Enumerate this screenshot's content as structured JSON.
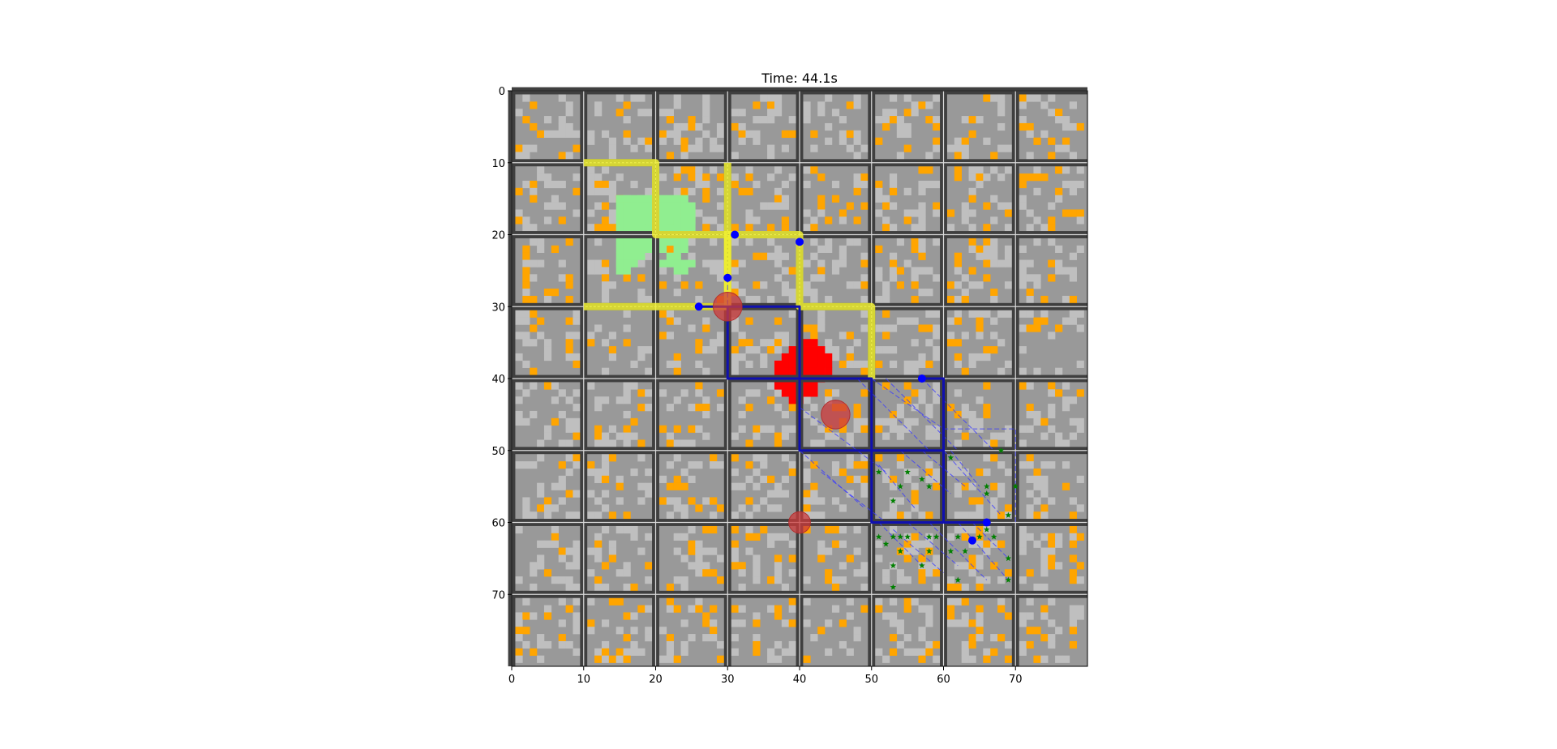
{
  "chart_data": {
    "type": "heatmap",
    "title": "Time: 44.1s",
    "xlabel": "",
    "ylabel": "",
    "xlim": [
      0,
      80
    ],
    "ylim": [
      80,
      0
    ],
    "y_inverted": true,
    "grid": true,
    "x_ticks": [
      0,
      10,
      20,
      30,
      40,
      50,
      60,
      70
    ],
    "y_ticks": [
      0,
      10,
      20,
      30,
      40,
      50,
      60,
      70
    ],
    "x_tick_labels": [
      "0",
      "10",
      "20",
      "30",
      "40",
      "50",
      "60",
      "70"
    ],
    "y_tick_labels": [
      "0",
      "10",
      "20",
      "30",
      "40",
      "50",
      "60",
      "70"
    ],
    "block_size": 10,
    "colors": {
      "background_cell": "#999999",
      "light_cell": "#bfbfbf",
      "obstacle_cell": "#ffa500",
      "wall": "#3f3f3f",
      "grid_line": "#d9d9d9",
      "green_region": "#90ee90",
      "red_region": "#ff0000",
      "yellow_path": "#f0f032",
      "blue_route": "#1010b0",
      "dashed_route": "#3a3aff",
      "waypoint": "#0000ff",
      "star": "#008000",
      "hazard_circle": "#cd3b3b"
    },
    "green_region_cells": [
      [
        15,
        15
      ],
      [
        16,
        15
      ],
      [
        17,
        15
      ],
      [
        18,
        15
      ],
      [
        19,
        15
      ],
      [
        21,
        15
      ],
      [
        22,
        15
      ],
      [
        23,
        15
      ],
      [
        24,
        15
      ],
      [
        15,
        16
      ],
      [
        16,
        16
      ],
      [
        17,
        16
      ],
      [
        18,
        16
      ],
      [
        19,
        16
      ],
      [
        21,
        16
      ],
      [
        22,
        16
      ],
      [
        23,
        16
      ],
      [
        24,
        16
      ],
      [
        25,
        16
      ],
      [
        15,
        17
      ],
      [
        16,
        17
      ],
      [
        17,
        17
      ],
      [
        18,
        17
      ],
      [
        19,
        17
      ],
      [
        21,
        17
      ],
      [
        22,
        17
      ],
      [
        23,
        17
      ],
      [
        24,
        17
      ],
      [
        25,
        17
      ],
      [
        15,
        18
      ],
      [
        16,
        18
      ],
      [
        17,
        18
      ],
      [
        18,
        18
      ],
      [
        19,
        18
      ],
      [
        21,
        18
      ],
      [
        22,
        18
      ],
      [
        23,
        18
      ],
      [
        24,
        18
      ],
      [
        25,
        18
      ],
      [
        15,
        19
      ],
      [
        16,
        19
      ],
      [
        17,
        19
      ],
      [
        18,
        19
      ],
      [
        19,
        19
      ],
      [
        21,
        19
      ],
      [
        22,
        19
      ],
      [
        23,
        19
      ],
      [
        24,
        19
      ],
      [
        25,
        19
      ],
      [
        15,
        21
      ],
      [
        16,
        21
      ],
      [
        17,
        21
      ],
      [
        18,
        21
      ],
      [
        19,
        21
      ],
      [
        21,
        21
      ],
      [
        22,
        21
      ],
      [
        23,
        21
      ],
      [
        24,
        21
      ],
      [
        15,
        22
      ],
      [
        16,
        22
      ],
      [
        17,
        22
      ],
      [
        18,
        22
      ],
      [
        19,
        22
      ],
      [
        21,
        22
      ],
      [
        23,
        22
      ],
      [
        24,
        22
      ],
      [
        15,
        23
      ],
      [
        16,
        23
      ],
      [
        17,
        23
      ],
      [
        18,
        23
      ],
      [
        22,
        23
      ],
      [
        23,
        23
      ],
      [
        15,
        24
      ],
      [
        16,
        24
      ],
      [
        17,
        24
      ],
      [
        21,
        24
      ],
      [
        22,
        24
      ],
      [
        23,
        24
      ],
      [
        24,
        24
      ],
      [
        25,
        24
      ],
      [
        15,
        25
      ],
      [
        16,
        25
      ],
      [
        23,
        25
      ],
      [
        24,
        25
      ]
    ],
    "red_region_cells": [
      [
        40,
        35
      ],
      [
        41,
        35
      ],
      [
        42,
        35
      ],
      [
        39,
        36
      ],
      [
        40,
        36
      ],
      [
        41,
        36
      ],
      [
        42,
        36
      ],
      [
        43,
        36
      ],
      [
        38,
        37
      ],
      [
        39,
        37
      ],
      [
        40,
        37
      ],
      [
        41,
        37
      ],
      [
        42,
        37
      ],
      [
        43,
        37
      ],
      [
        44,
        37
      ],
      [
        37,
        38
      ],
      [
        38,
        38
      ],
      [
        39,
        38
      ],
      [
        40,
        38
      ],
      [
        41,
        38
      ],
      [
        42,
        38
      ],
      [
        43,
        38
      ],
      [
        44,
        38
      ],
      [
        37,
        39
      ],
      [
        38,
        39
      ],
      [
        39,
        39
      ],
      [
        40,
        39
      ],
      [
        41,
        39
      ],
      [
        42,
        39
      ],
      [
        43,
        39
      ],
      [
        44,
        39
      ],
      [
        37,
        40
      ],
      [
        38,
        40
      ],
      [
        39,
        40
      ],
      [
        41,
        40
      ],
      [
        42,
        40
      ],
      [
        43,
        40
      ],
      [
        37,
        41
      ],
      [
        38,
        41
      ],
      [
        39,
        41
      ],
      [
        41,
        41
      ],
      [
        42,
        41
      ],
      [
        38,
        42
      ],
      [
        39,
        42
      ],
      [
        41,
        42
      ],
      [
        42,
        42
      ],
      [
        39,
        43
      ],
      [
        40,
        43
      ]
    ],
    "yellow_paths": [
      [
        [
          10,
          10
        ],
        [
          20,
          10
        ],
        [
          20,
          20
        ],
        [
          30,
          20
        ],
        [
          30,
          30
        ]
      ],
      [
        [
          30,
          10
        ],
        [
          30,
          30
        ]
      ],
      [
        [
          30,
          20
        ],
        [
          40,
          20
        ],
        [
          40,
          30
        ],
        [
          50,
          30
        ],
        [
          50,
          40
        ]
      ],
      [
        [
          10,
          30
        ],
        [
          30,
          30
        ]
      ]
    ],
    "blue_routes": [
      [
        [
          26,
          30
        ],
        [
          40,
          30
        ],
        [
          40,
          40
        ],
        [
          50,
          40
        ],
        [
          50,
          50
        ],
        [
          60,
          50
        ],
        [
          60,
          60
        ],
        [
          66,
          60
        ]
      ],
      [
        [
          40,
          40
        ],
        [
          40,
          50
        ],
        [
          50,
          50
        ],
        [
          50,
          60
        ],
        [
          60,
          60
        ]
      ],
      [
        [
          30,
          30
        ],
        [
          30,
          40
        ],
        [
          40,
          40
        ]
      ],
      [
        [
          57,
          40
        ],
        [
          60,
          40
        ],
        [
          60,
          50
        ]
      ]
    ],
    "dashed_routes": [
      [
        [
          30,
          26
        ],
        [
          30,
          40
        ],
        [
          40,
          40
        ]
      ],
      [
        [
          30,
          30
        ],
        [
          40,
          30
        ]
      ],
      [
        [
          50,
          40
        ],
        [
          60,
          47
        ],
        [
          70,
          47
        ],
        [
          70,
          60
        ]
      ],
      [
        [
          57,
          40
        ],
        [
          67,
          50
        ]
      ],
      [
        [
          52,
          40
        ],
        [
          62,
          50
        ]
      ],
      [
        [
          48,
          40
        ],
        [
          58,
          50
        ]
      ],
      [
        [
          40,
          44
        ],
        [
          52,
          53
        ]
      ],
      [
        [
          40,
          50
        ],
        [
          49,
          58
        ]
      ],
      [
        [
          43,
          53
        ],
        [
          52,
          60
        ]
      ],
      [
        [
          51,
          52
        ],
        [
          56,
          58
        ]
      ],
      [
        [
          54,
          50
        ],
        [
          61,
          56
        ]
      ],
      [
        [
          57,
          50
        ],
        [
          63,
          55
        ]
      ],
      [
        [
          61,
          50
        ],
        [
          65,
          55
        ]
      ],
      [
        [
          51,
          60
        ],
        [
          57,
          66
        ]
      ],
      [
        [
          53,
          61
        ],
        [
          60,
          67
        ]
      ],
      [
        [
          55,
          60
        ],
        [
          62,
          66
        ]
      ],
      [
        [
          58,
          60
        ],
        [
          66,
          68
        ]
      ],
      [
        [
          62,
          60
        ],
        [
          69,
          68
        ]
      ],
      [
        [
          64,
          60
        ],
        [
          69,
          65
        ]
      ],
      [
        [
          60,
          50
        ],
        [
          68,
          59
        ]
      ]
    ],
    "waypoints": [
      [
        31,
        20
      ],
      [
        40,
        21
      ],
      [
        30,
        26
      ],
      [
        26,
        30
      ],
      [
        57,
        40
      ],
      [
        66,
        60
      ],
      [
        64,
        62.5
      ]
    ],
    "stars": [
      [
        51,
        53
      ],
      [
        53,
        57
      ],
      [
        54,
        55
      ],
      [
        55,
        53
      ],
      [
        57,
        54
      ],
      [
        58,
        55
      ],
      [
        61,
        51
      ],
      [
        66,
        55
      ],
      [
        66,
        56
      ],
      [
        68,
        50
      ],
      [
        69,
        59
      ],
      [
        70,
        55
      ],
      [
        51,
        62
      ],
      [
        52,
        63
      ],
      [
        53,
        62
      ],
      [
        53,
        66
      ],
      [
        54,
        62
      ],
      [
        54,
        64
      ],
      [
        55,
        62
      ],
      [
        57,
        66
      ],
      [
        58,
        62
      ],
      [
        58,
        64
      ],
      [
        59,
        62
      ],
      [
        61,
        64
      ],
      [
        62,
        62
      ],
      [
        62,
        68
      ],
      [
        63,
        64
      ],
      [
        65,
        62
      ],
      [
        66,
        61
      ],
      [
        67,
        62
      ],
      [
        69,
        65
      ],
      [
        69,
        68
      ],
      [
        53,
        69
      ]
    ],
    "hazard_circles": [
      {
        "x": 30,
        "y": 30,
        "r": 2
      },
      {
        "x": 45,
        "y": 45,
        "r": 2
      },
      {
        "x": 40,
        "y": 60,
        "r": 1.5
      }
    ]
  }
}
